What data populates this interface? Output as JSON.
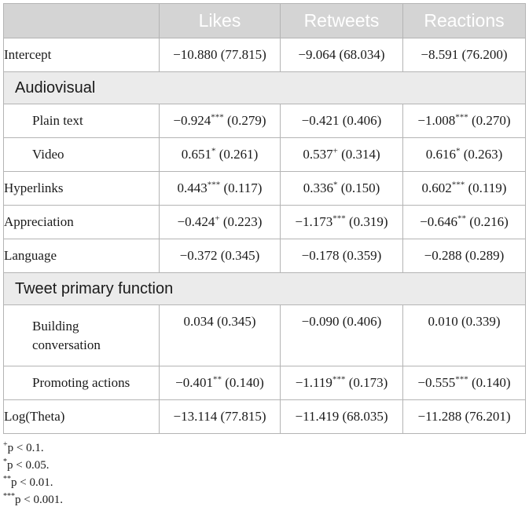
{
  "header": {
    "col0": "",
    "col1": "Likes",
    "col2": "Retweets",
    "col3": "Reactions"
  },
  "rows": {
    "intercept": {
      "label": "Intercept",
      "likes": {
        "v": "−10.880 (77.815)",
        "sig": ""
      },
      "retweets": {
        "v": "−9.064 (68.034)",
        "sig": ""
      },
      "reactions": {
        "v": "−8.591 (76.200)",
        "sig": ""
      }
    },
    "section_audiovisual": "Audiovisual",
    "plain_text": {
      "label": "Plain text",
      "likes": {
        "a": "−0.924",
        "sig": "***",
        "b": " (0.279)"
      },
      "retweets": {
        "a": "−0.421",
        "sig": "",
        "b": " (0.406)"
      },
      "reactions": {
        "a": "−1.008",
        "sig": "***",
        "b": " (0.270)"
      }
    },
    "video": {
      "label": "Video",
      "likes": {
        "a": "0.651",
        "sig": "*",
        "b": " (0.261)"
      },
      "retweets": {
        "a": "0.537",
        "sig": "+",
        "b": " (0.314)"
      },
      "reactions": {
        "a": "0.616",
        "sig": "*",
        "b": " (0.263)"
      }
    },
    "hyperlinks": {
      "label": "Hyperlinks",
      "likes": {
        "a": "0.443",
        "sig": "***",
        "b": " (0.117)"
      },
      "retweets": {
        "a": "0.336",
        "sig": "*",
        "b": " (0.150)"
      },
      "reactions": {
        "a": "0.602",
        "sig": "***",
        "b": " (0.119)"
      }
    },
    "appreciation": {
      "label": "Appreciation",
      "likes": {
        "a": "−0.424",
        "sig": "+",
        "b": " (0.223)"
      },
      "retweets": {
        "a": "−1.173",
        "sig": "***",
        "b": " (0.319)"
      },
      "reactions": {
        "a": "−0.646",
        "sig": "**",
        "b": " (0.216)"
      }
    },
    "language": {
      "label": "Language",
      "likes": {
        "a": "−0.372",
        "sig": "",
        "b": " (0.345)"
      },
      "retweets": {
        "a": "−0.178",
        "sig": "",
        "b": " (0.359)"
      },
      "reactions": {
        "a": "−0.288",
        "sig": "",
        "b": " (0.289)"
      }
    },
    "section_function": "Tweet primary function",
    "building": {
      "label_line1": "Building",
      "label_line2": "conversation",
      "likes": {
        "a": "0.034",
        "sig": "",
        "b": " (0.345)"
      },
      "retweets": {
        "a": "−0.090",
        "sig": "",
        "b": " (0.406)"
      },
      "reactions": {
        "a": "0.010",
        "sig": "",
        "b": " (0.339)"
      }
    },
    "promoting": {
      "label": "Promoting actions",
      "likes": {
        "a": "−0.401",
        "sig": "**",
        "b": " (0.140)"
      },
      "retweets": {
        "a": "−1.119",
        "sig": "***",
        "b": " (0.173)"
      },
      "reactions": {
        "a": "−0.555",
        "sig": "***",
        "b": " (0.140)"
      }
    },
    "logtheta": {
      "label": "Log(Theta)",
      "likes": {
        "v": "−13.114 (77.815)"
      },
      "retweets": {
        "v": "−11.419 (68.035)"
      },
      "reactions": {
        "v": "−11.288 (76.201)"
      }
    }
  },
  "notes": [
    {
      "sym": "+",
      "text": "p < 0.1."
    },
    {
      "sym": "*",
      "text": "p < 0.05."
    },
    {
      "sym": "**",
      "text": "p < 0.01."
    },
    {
      "sym": "***",
      "text": "p < 0.001."
    }
  ],
  "colors": {
    "header_bg": "#d4d4d4",
    "section_bg": "#ebebeb",
    "border": "#b4b4b4"
  }
}
